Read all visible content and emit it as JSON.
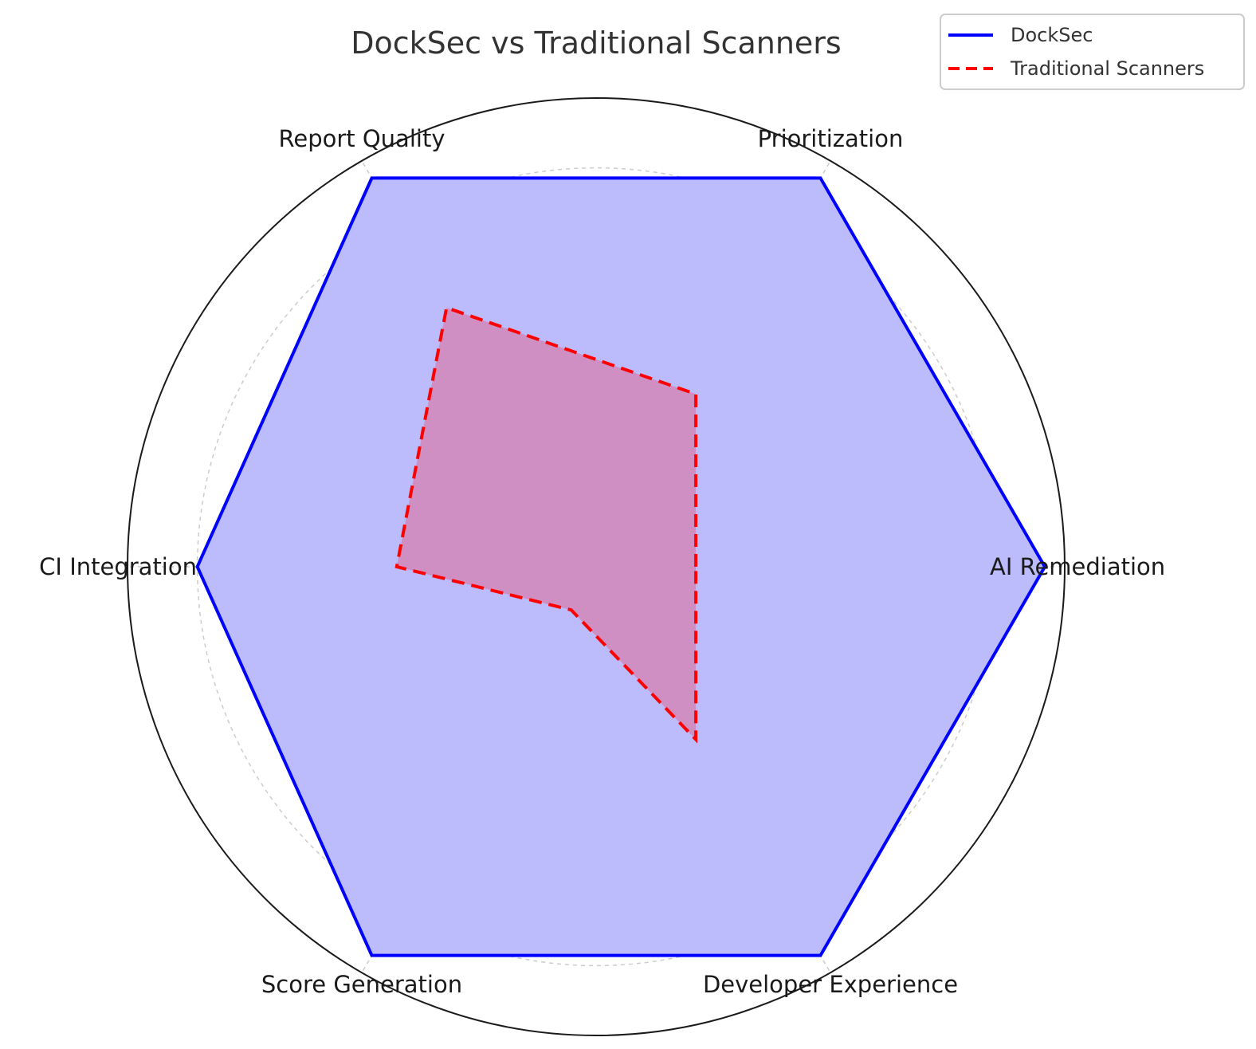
{
  "chart_data": {
    "type": "radar",
    "title": "DockSec vs Traditional Scanners",
    "categories": [
      "AI Remediation",
      "Prioritization",
      "Report Quality",
      "CI Integration",
      "Score Generation",
      "Developer Experience"
    ],
    "rlim": [
      0,
      4.7
    ],
    "grid": true,
    "legend_position": "top-right",
    "series": [
      {
        "name": "DockSec",
        "values": [
          4.5,
          4.5,
          4.5,
          4,
          4.5,
          4.5
        ],
        "color": "#0000ff",
        "fill": "#bcbcfc",
        "linestyle": "solid"
      },
      {
        "name": "Traditional Scanners",
        "values": [
          1,
          2,
          3,
          2,
          0.5,
          2
        ],
        "color": "#ff0000",
        "fill": "#cf8fc3",
        "linestyle": "dashed"
      }
    ]
  }
}
